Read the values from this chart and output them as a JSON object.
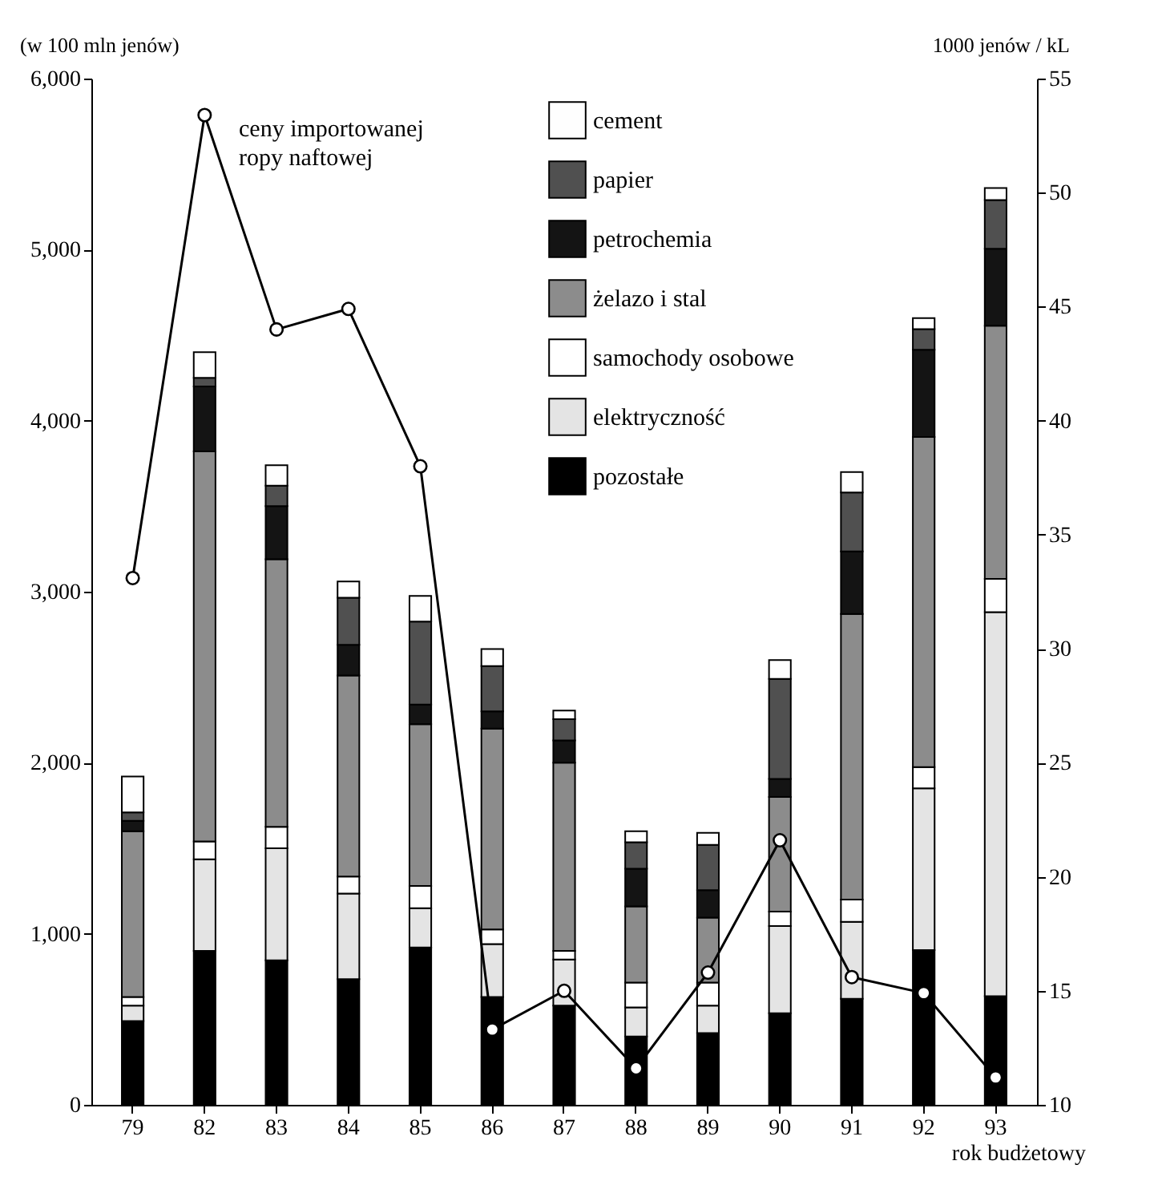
{
  "chart_data": {
    "type": "bar",
    "stacked": true,
    "ylabel": "(w 100 mln jenów)",
    "y2label": "1000 jenów / kL",
    "xlabel": "rok budżetowy",
    "categories": [
      "79",
      "82",
      "83",
      "84",
      "85",
      "86",
      "87",
      "88",
      "89",
      "90",
      "91",
      "92",
      "93"
    ],
    "ylim": [
      0,
      6000
    ],
    "yticks": [
      0,
      {
        "value": 1000,
        "label": "1,000"
      },
      {
        "value": 2000,
        "label": "2,000"
      },
      {
        "value": 3000,
        "label": "3,000"
      },
      {
        "value": 4000,
        "label": "4,000"
      },
      {
        "value": 5000,
        "label": "5,000"
      },
      {
        "value": 6000,
        "label": "6,000"
      }
    ],
    "y2lim": [
      10,
      55
    ],
    "y2ticks": [
      10,
      15,
      20,
      25,
      30,
      35,
      40,
      45,
      50,
      55
    ],
    "grid": false,
    "legend": "top right",
    "marker": "circle",
    "line_style": "solid",
    "series": [
      {
        "name": "pozostałe",
        "color": "#000000",
        "values": [
          490,
          900,
          845,
          735,
          920,
          630,
          580,
          400,
          420,
          535,
          620,
          905,
          635
        ]
      },
      {
        "name": "elektryczność",
        "color": "#e4e4e4",
        "values": [
          90,
          535,
          655,
          500,
          230,
          310,
          270,
          170,
          160,
          510,
          450,
          945,
          2245
        ]
      },
      {
        "name": "samochody osobowe",
        "color": "#ffffff",
        "values": [
          50,
          105,
          125,
          100,
          130,
          85,
          50,
          145,
          135,
          85,
          130,
          125,
          195
        ]
      },
      {
        "name": "żelazo i stal",
        "color": "#8c8c8c",
        "values": [
          970,
          2280,
          1565,
          1175,
          945,
          1175,
          1100,
          445,
          380,
          670,
          1670,
          1930,
          1480
        ]
      },
      {
        "name": "petrochemia",
        "color": "#141414",
        "values": [
          60,
          380,
          310,
          180,
          115,
          100,
          130,
          220,
          160,
          105,
          365,
          510,
          450
        ]
      },
      {
        "name": "papier",
        "color": "#505050",
        "values": [
          50,
          50,
          120,
          275,
          485,
          265,
          125,
          155,
          265,
          585,
          345,
          120,
          285
        ]
      },
      {
        "name": "cement",
        "color": "#fefefe",
        "values": [
          210,
          150,
          120,
          95,
          150,
          100,
          50,
          65,
          70,
          110,
          120,
          65,
          70
        ]
      },
      {
        "name": "ceny importowanej ropy naftowej",
        "type": "line",
        "axis": "y2",
        "color": "#000000",
        "values": [
          33.1,
          53.4,
          44.0,
          44.9,
          38.0,
          13.3,
          15.0,
          11.6,
          15.8,
          21.6,
          15.6,
          14.9,
          11.2
        ]
      }
    ]
  }
}
